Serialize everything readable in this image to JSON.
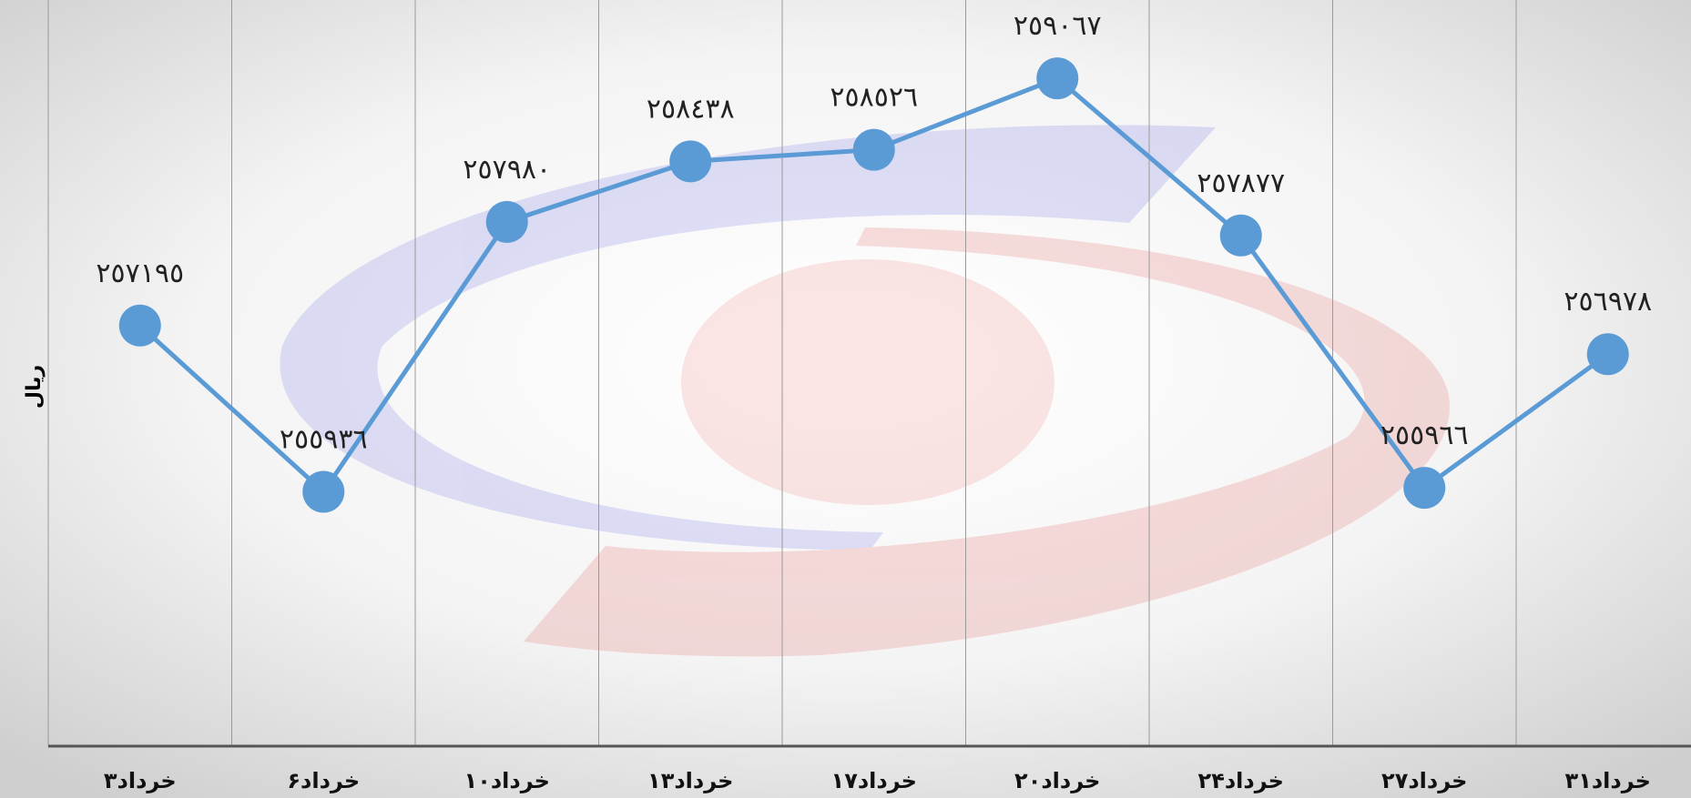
{
  "chart_data": {
    "type": "line",
    "y_label": "ریال",
    "categories": [
      "۳خرداد",
      "۶خرداد",
      "۱۰خرداد",
      "۱۳خرداد",
      "۱۷خرداد",
      "۲۰خرداد",
      "۲۴خرداد",
      "۲۷خرداد",
      "۳۱خرداد"
    ],
    "values": [
      257195,
      255936,
      257980,
      258438,
      258526,
      259067,
      257877,
      255966,
      256978
    ],
    "value_labels": [
      "٢٥٧١٩٥",
      "٢٥٥٩٣٦",
      "٢٥٧٩٨٠",
      "٢٥٨٤٣٨",
      "٢٥٨٥٢٦",
      "٢٥٩٠٦٧",
      "٢٥٧٨٧٧",
      "٢٥٥٩٦٦",
      "٢٥٦٩٧٨"
    ],
    "color": "#5b9bd5",
    "ylim": [
      254010,
      259660
    ],
    "grid": true
  }
}
